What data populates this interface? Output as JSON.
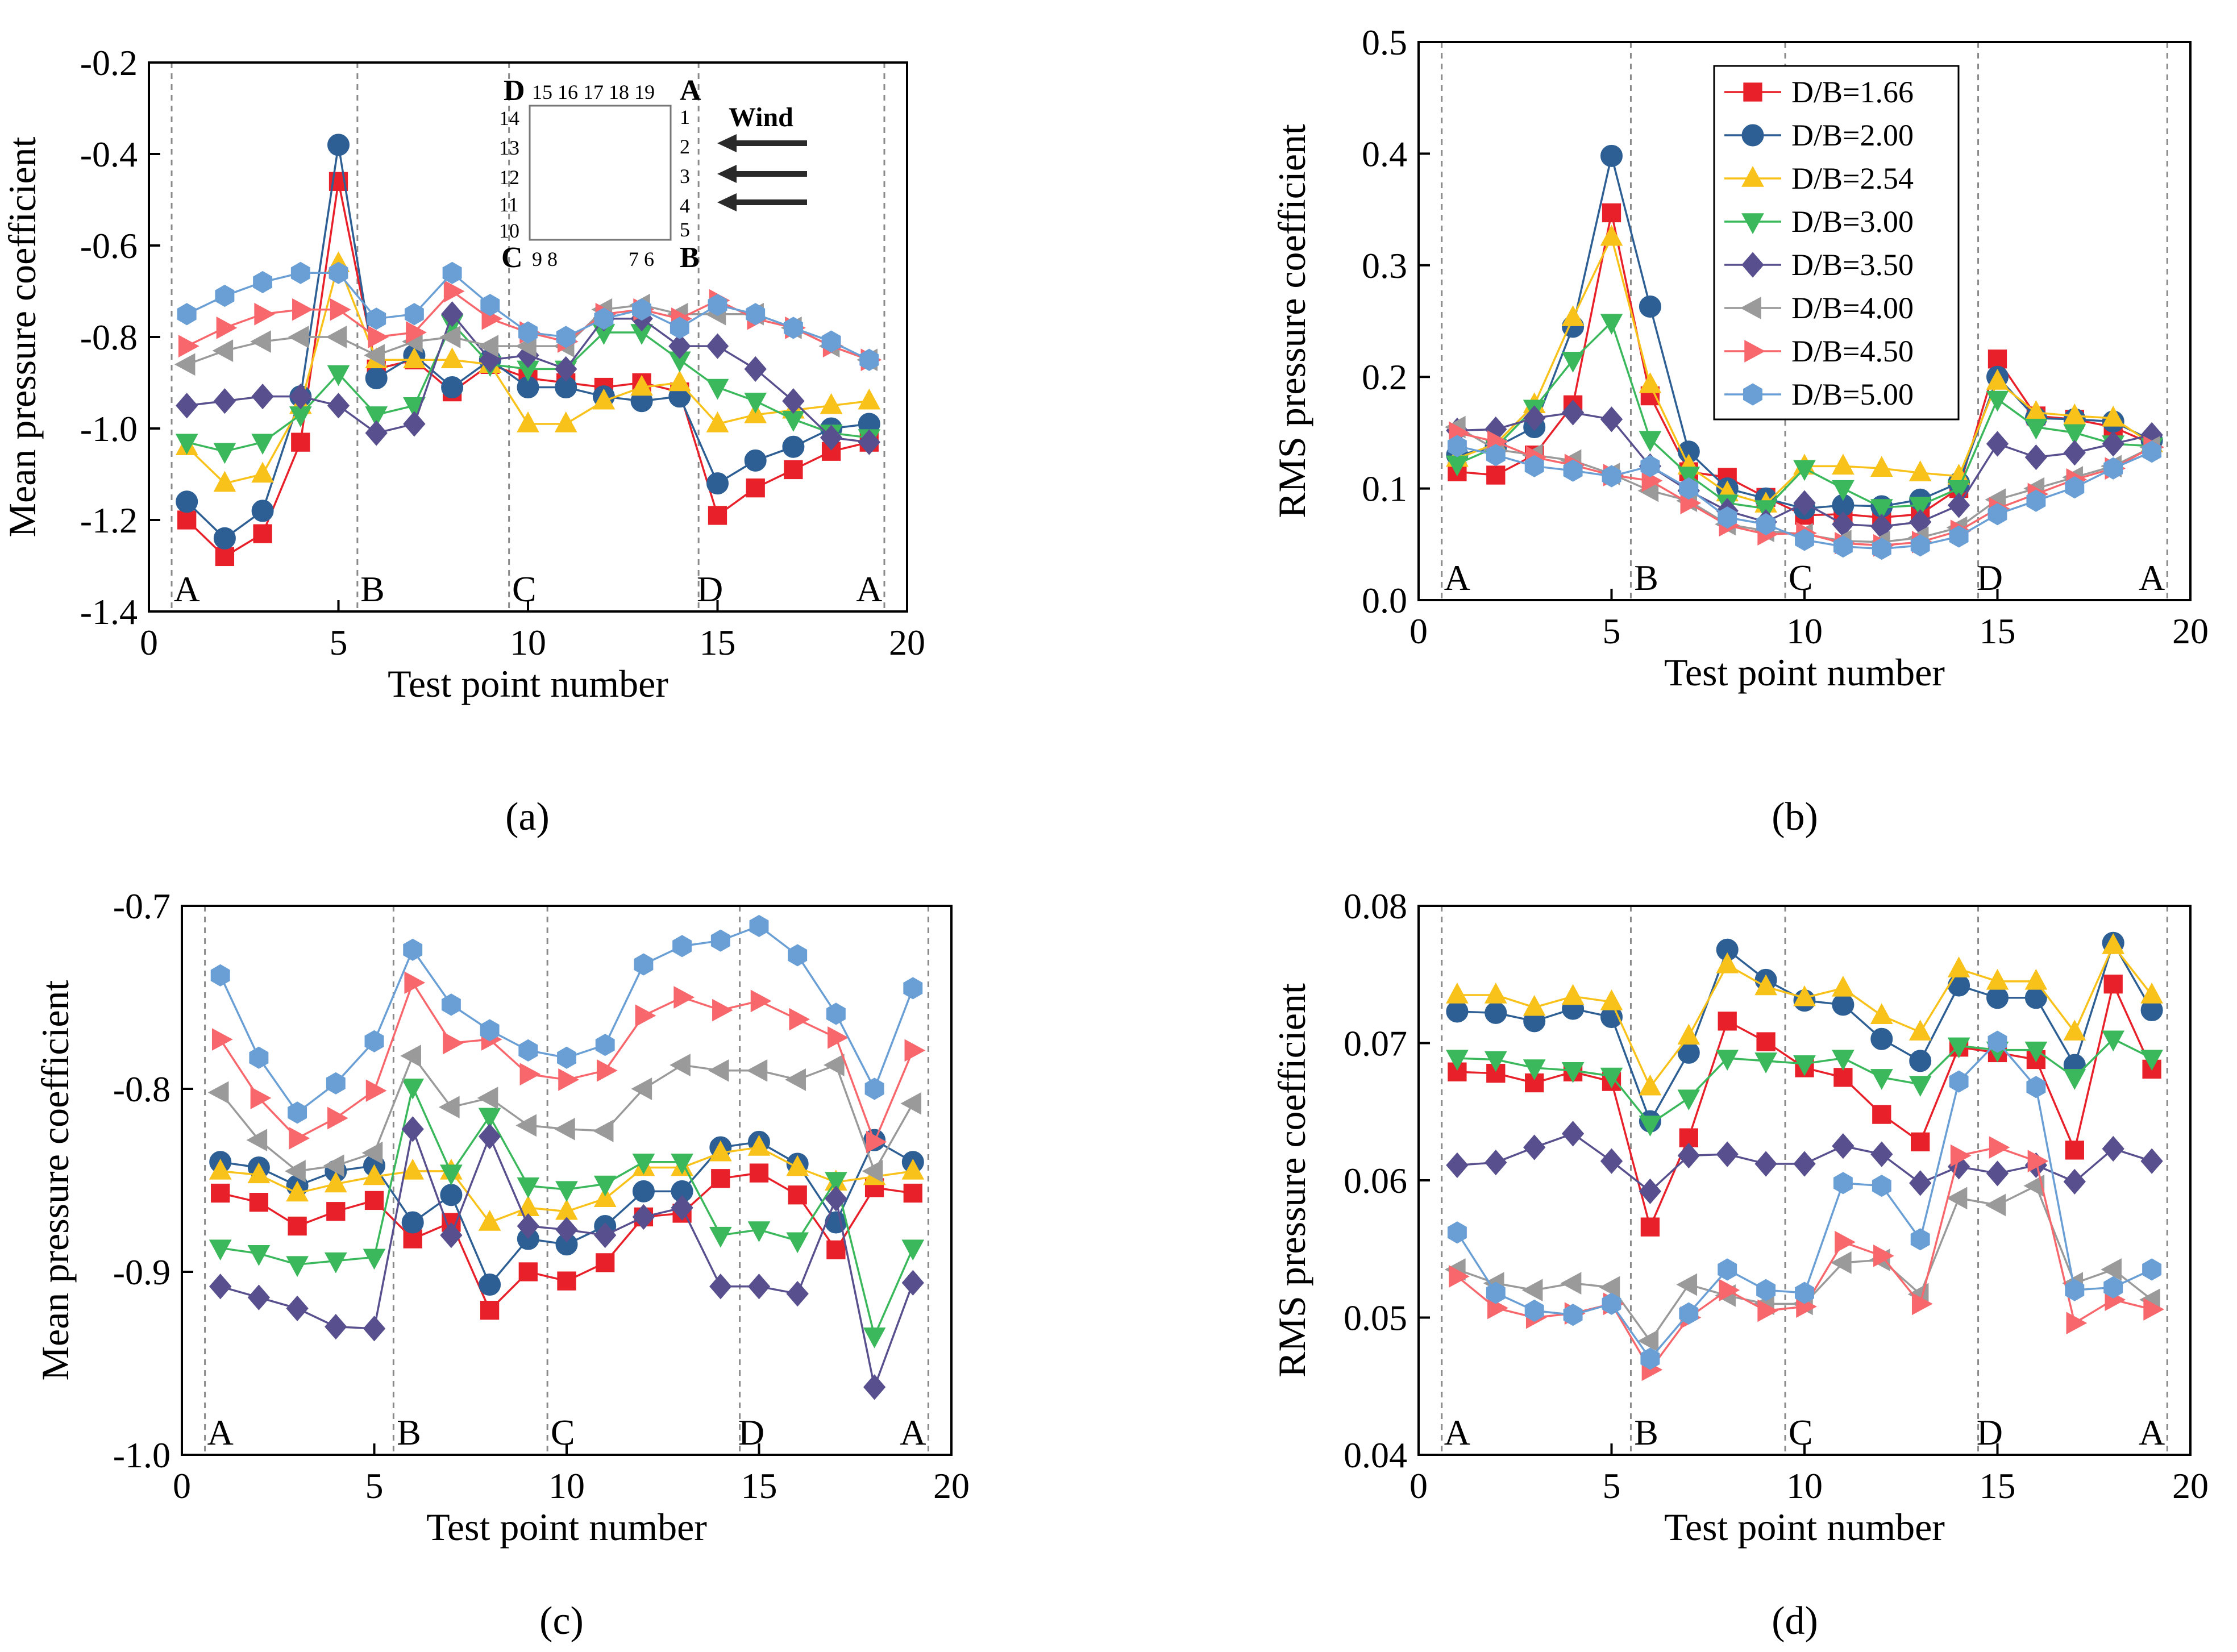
{
  "series_meta": [
    {
      "name": "D/B=1.66",
      "color": "#e8202a",
      "marker": "square"
    },
    {
      "name": "D/B=2.00",
      "color": "#2d5f94",
      "marker": "circle"
    },
    {
      "name": "D/B=2.54",
      "color": "#f9c21a",
      "marker": "triangle-up"
    },
    {
      "name": "D/B=3.00",
      "color": "#3ab85b",
      "marker": "triangle-down"
    },
    {
      "name": "D/B=3.50",
      "color": "#58508e",
      "marker": "diamond"
    },
    {
      "name": "D/B=4.00",
      "color": "#9a9a9a",
      "marker": "triangle-left"
    },
    {
      "name": "D/B=4.50",
      "color": "#f7676c",
      "marker": "triangle-right"
    },
    {
      "name": "D/B=5.00",
      "color": "#6a9fd6",
      "marker": "hexagon"
    }
  ],
  "region_lines_x": [
    0.6,
    5.5,
    9.5,
    14.5,
    19.4
  ],
  "region_labels": [
    {
      "text": "A",
      "x": 1.0
    },
    {
      "text": "B",
      "x": 5.9
    },
    {
      "text": "C",
      "x": 9.9
    },
    {
      "text": "D",
      "x": 14.8
    },
    {
      "text": "A",
      "x": 19.0
    }
  ],
  "inset": {
    "corner_labels": {
      "d": "D",
      "a": "A",
      "c": "C",
      "b": "B"
    },
    "top_numbers": "15 16 17 18 19",
    "right_numbers": [
      "1",
      "2",
      "3",
      "4",
      "5"
    ],
    "left_numbers": [
      "14",
      "13",
      "12",
      "11",
      "10"
    ],
    "bottom_left_numbers": "9  8",
    "bottom_right_numbers": "7  6",
    "wind_label": "Wind"
  },
  "chart_data": [
    {
      "id": "a",
      "panel_label": "(a)",
      "type": "line",
      "xlabel": "Test point number",
      "ylabel": "Mean pressure coefficient",
      "xlim": [
        0,
        20
      ],
      "ylim": [
        -1.4,
        -0.2
      ],
      "xticks": [
        0,
        5,
        10,
        15,
        20
      ],
      "xtick_labels": [
        "0",
        "5",
        "10",
        "15",
        "20"
      ],
      "yticks": [
        -1.4,
        -1.2,
        -1.0,
        -0.8,
        -0.6,
        -0.4,
        -0.2
      ],
      "ytick_labels": [
        "-1.4",
        "-1.2",
        "-1.0",
        "-0.8",
        "-0.6",
        "-0.4",
        "-0.2"
      ],
      "x": [
        1,
        2,
        3,
        4,
        5,
        6,
        7,
        8,
        9,
        10,
        11,
        12,
        13,
        14,
        15,
        16,
        17,
        18,
        19
      ],
      "series": [
        {
          "name": "D/B=1.66",
          "values": [
            -1.2,
            -1.28,
            -1.23,
            -1.03,
            -0.46,
            -0.87,
            -0.85,
            -0.92,
            -0.86,
            -0.89,
            -0.9,
            -0.91,
            -0.9,
            -0.92,
            -1.19,
            -1.13,
            -1.09,
            -1.05,
            -1.03
          ]
        },
        {
          "name": "D/B=2.00",
          "values": [
            -1.16,
            -1.24,
            -1.18,
            -0.93,
            -0.38,
            -0.89,
            -0.84,
            -0.91,
            -0.85,
            -0.91,
            -0.91,
            -0.93,
            -0.94,
            -0.93,
            -1.12,
            -1.07,
            -1.04,
            -1.0,
            -0.99
          ]
        },
        {
          "name": "D/B=2.54",
          "values": [
            -1.04,
            -1.12,
            -1.1,
            -0.95,
            -0.64,
            -0.85,
            -0.85,
            -0.85,
            -0.86,
            -0.99,
            -0.99,
            -0.94,
            -0.91,
            -0.9,
            -0.99,
            -0.97,
            -0.96,
            -0.95,
            -0.94
          ]
        },
        {
          "name": "D/B=3.00",
          "values": [
            -1.03,
            -1.05,
            -1.03,
            -0.97,
            -0.88,
            -0.97,
            -0.95,
            -0.77,
            -0.86,
            -0.87,
            -0.87,
            -0.79,
            -0.79,
            -0.85,
            -0.91,
            -0.94,
            -0.98,
            -1.01,
            -1.02
          ]
        },
        {
          "name": "D/B=3.50",
          "values": [
            -0.95,
            -0.94,
            -0.93,
            -0.93,
            -0.95,
            -1.01,
            -0.99,
            -0.75,
            -0.85,
            -0.84,
            -0.87,
            -0.76,
            -0.76,
            -0.82,
            -0.82,
            -0.87,
            -0.94,
            -1.02,
            -1.03
          ]
        },
        {
          "name": "D/B=4.00",
          "values": [
            -0.86,
            -0.83,
            -0.81,
            -0.8,
            -0.8,
            -0.84,
            -0.81,
            -0.8,
            -0.82,
            -0.82,
            -0.82,
            -0.74,
            -0.73,
            -0.75,
            -0.75,
            -0.75,
            -0.78,
            -0.82,
            -0.85
          ]
        },
        {
          "name": "D/B=4.50",
          "values": [
            -0.82,
            -0.78,
            -0.75,
            -0.74,
            -0.74,
            -0.8,
            -0.79,
            -0.7,
            -0.76,
            -0.79,
            -0.81,
            -0.75,
            -0.74,
            -0.76,
            -0.72,
            -0.76,
            -0.78,
            -0.82,
            -0.85
          ]
        },
        {
          "name": "D/B=5.00",
          "values": [
            -0.75,
            -0.71,
            -0.68,
            -0.66,
            -0.66,
            -0.76,
            -0.75,
            -0.66,
            -0.73,
            -0.79,
            -0.8,
            -0.76,
            -0.74,
            -0.78,
            -0.73,
            -0.75,
            -0.78,
            -0.81,
            -0.85
          ]
        }
      ]
    },
    {
      "id": "b",
      "panel_label": "(b)",
      "type": "line",
      "xlabel": "Test point number",
      "ylabel": "RMS pressure coefficient",
      "xlim": [
        0,
        20
      ],
      "ylim": [
        0.0,
        0.5
      ],
      "xticks": [
        0,
        5,
        10,
        15,
        20
      ],
      "xtick_labels": [
        "0",
        "5",
        "10",
        "15",
        "20"
      ],
      "yticks": [
        0.0,
        0.1,
        0.2,
        0.3,
        0.4,
        0.5
      ],
      "ytick_labels": [
        "0.0",
        "0.1",
        "0.2",
        "0.3",
        "0.4",
        "0.5"
      ],
      "legend": "top-inside",
      "x": [
        1,
        2,
        3,
        4,
        5,
        6,
        7,
        8,
        9,
        10,
        11,
        12,
        13,
        14,
        15,
        16,
        17,
        18,
        19
      ],
      "series": [
        {
          "name": "D/B=1.66",
          "values": [
            0.115,
            0.112,
            0.13,
            0.175,
            0.347,
            0.183,
            0.115,
            0.11,
            0.092,
            0.076,
            0.077,
            0.074,
            0.077,
            0.1,
            0.216,
            0.165,
            0.162,
            0.155,
            0.14
          ]
        },
        {
          "name": "D/B=2.00",
          "values": [
            0.13,
            0.137,
            0.155,
            0.245,
            0.398,
            0.263,
            0.133,
            0.1,
            0.091,
            0.082,
            0.085,
            0.084,
            0.09,
            0.105,
            0.2,
            0.163,
            0.162,
            0.16,
            0.143
          ]
        },
        {
          "name": "D/B=2.54",
          "values": [
            0.127,
            0.14,
            0.175,
            0.253,
            0.325,
            0.193,
            0.12,
            0.096,
            0.086,
            0.12,
            0.12,
            0.118,
            0.114,
            0.111,
            0.196,
            0.168,
            0.165,
            0.163,
            0.14
          ]
        },
        {
          "name": "D/B=3.00",
          "values": [
            0.122,
            0.137,
            0.172,
            0.215,
            0.249,
            0.144,
            0.112,
            0.087,
            0.082,
            0.118,
            0.1,
            0.083,
            0.085,
            0.1,
            0.18,
            0.155,
            0.15,
            0.14,
            0.138
          ]
        },
        {
          "name": "D/B=3.50",
          "values": [
            0.152,
            0.153,
            0.163,
            0.168,
            0.162,
            0.12,
            0.098,
            0.08,
            0.07,
            0.087,
            0.068,
            0.066,
            0.07,
            0.085,
            0.14,
            0.128,
            0.132,
            0.14,
            0.148
          ]
        },
        {
          "name": "D/B=4.00",
          "values": [
            0.155,
            0.135,
            0.13,
            0.125,
            0.113,
            0.098,
            0.089,
            0.068,
            0.062,
            0.059,
            0.053,
            0.052,
            0.056,
            0.065,
            0.09,
            0.1,
            0.11,
            0.12,
            0.137
          ]
        },
        {
          "name": "D/B=4.50",
          "values": [
            0.15,
            0.142,
            0.128,
            0.121,
            0.112,
            0.107,
            0.087,
            0.067,
            0.059,
            0.06,
            0.051,
            0.049,
            0.052,
            0.062,
            0.082,
            0.095,
            0.108,
            0.118,
            0.137
          ]
        },
        {
          "name": "D/B=5.00",
          "values": [
            0.138,
            0.13,
            0.12,
            0.116,
            0.111,
            0.12,
            0.1,
            0.074,
            0.068,
            0.054,
            0.048,
            0.046,
            0.049,
            0.057,
            0.077,
            0.089,
            0.101,
            0.118,
            0.133
          ]
        }
      ]
    },
    {
      "id": "c",
      "panel_label": "(c)",
      "type": "line",
      "xlabel": "Test point number",
      "ylabel": "Mean pressure coefficient",
      "xlim": [
        0,
        20
      ],
      "ylim": [
        -1.0,
        -0.7
      ],
      "xticks": [
        0,
        5,
        10,
        15,
        20
      ],
      "xtick_labels": [
        "0",
        "5",
        "10",
        "15",
        "20"
      ],
      "yticks": [
        -1.0,
        -0.9,
        -0.8,
        -0.7
      ],
      "ytick_labels": [
        "-1.0",
        "-0.9",
        "-0.8",
        "-0.7"
      ],
      "x": [
        1,
        2,
        3,
        4,
        5,
        6,
        7,
        8,
        9,
        10,
        11,
        12,
        13,
        14,
        15,
        16,
        17,
        18,
        19
      ],
      "series": [
        {
          "name": "D/B=1.66",
          "values": [
            -0.857,
            -0.862,
            -0.875,
            -0.867,
            -0.861,
            -0.882,
            -0.873,
            -0.921,
            -0.9,
            -0.905,
            -0.895,
            -0.87,
            -0.868,
            -0.849,
            -0.846,
            -0.858,
            -0.888,
            -0.854,
            -0.857
          ]
        },
        {
          "name": "D/B=2.00",
          "values": [
            -0.84,
            -0.843,
            -0.853,
            -0.845,
            -0.842,
            -0.873,
            -0.858,
            -0.907,
            -0.882,
            -0.885,
            -0.875,
            -0.856,
            -0.856,
            -0.832,
            -0.829,
            -0.841,
            -0.873,
            -0.828,
            -0.84
          ]
        },
        {
          "name": "D/B=2.54",
          "values": [
            -0.845,
            -0.847,
            -0.857,
            -0.852,
            -0.848,
            -0.845,
            -0.845,
            -0.873,
            -0.865,
            -0.867,
            -0.86,
            -0.843,
            -0.843,
            -0.835,
            -0.832,
            -0.843,
            -0.851,
            -0.848,
            -0.845
          ]
        },
        {
          "name": "D/B=3.00",
          "values": [
            -0.887,
            -0.89,
            -0.896,
            -0.894,
            -0.892,
            -0.799,
            -0.846,
            -0.815,
            -0.853,
            -0.855,
            -0.852,
            -0.84,
            -0.84,
            -0.88,
            -0.877,
            -0.883,
            -0.85,
            -0.935,
            -0.887
          ]
        },
        {
          "name": "D/B=3.50",
          "values": [
            -0.908,
            -0.914,
            -0.92,
            -0.93,
            -0.931,
            -0.822,
            -0.88,
            -0.826,
            -0.875,
            -0.877,
            -0.88,
            -0.87,
            -0.865,
            -0.908,
            -0.908,
            -0.912,
            -0.86,
            -0.963,
            -0.906
          ]
        },
        {
          "name": "D/B=4.00",
          "values": [
            -0.802,
            -0.828,
            -0.845,
            -0.842,
            -0.835,
            -0.782,
            -0.81,
            -0.805,
            -0.82,
            -0.822,
            -0.823,
            -0.8,
            -0.787,
            -0.79,
            -0.79,
            -0.795,
            -0.787,
            -0.845,
            -0.808
          ]
        },
        {
          "name": "D/B=4.50",
          "values": [
            -0.773,
            -0.805,
            -0.827,
            -0.816,
            -0.801,
            -0.742,
            -0.775,
            -0.773,
            -0.792,
            -0.795,
            -0.79,
            -0.76,
            -0.75,
            -0.757,
            -0.752,
            -0.762,
            -0.772,
            -0.829,
            -0.779
          ]
        },
        {
          "name": "D/B=5.00",
          "values": [
            -0.738,
            -0.783,
            -0.813,
            -0.797,
            -0.774,
            -0.724,
            -0.754,
            -0.768,
            -0.779,
            -0.783,
            -0.776,
            -0.732,
            -0.722,
            -0.719,
            -0.711,
            -0.727,
            -0.759,
            -0.8,
            -0.745
          ]
        }
      ]
    },
    {
      "id": "d",
      "panel_label": "(d)",
      "type": "line",
      "xlabel": "Test point number",
      "ylabel": "RMS pressure coefficient",
      "xlim": [
        0,
        20
      ],
      "ylim": [
        0.04,
        0.08
      ],
      "xticks": [
        0,
        5,
        10,
        15,
        20
      ],
      "xtick_labels": [
        "0",
        "5",
        "10",
        "15",
        "20"
      ],
      "yticks": [
        0.04,
        0.05,
        0.06,
        0.07,
        0.08
      ],
      "ytick_labels": [
        "0.04",
        "0.05",
        "0.06",
        "0.07",
        "0.08"
      ],
      "x": [
        1,
        2,
        3,
        4,
        5,
        6,
        7,
        8,
        9,
        10,
        11,
        12,
        13,
        14,
        15,
        16,
        17,
        18,
        19
      ],
      "series": [
        {
          "name": "D/B=1.66",
          "values": [
            0.0679,
            0.0678,
            0.0671,
            0.0679,
            0.0672,
            0.0566,
            0.0631,
            0.0716,
            0.0701,
            0.0682,
            0.0675,
            0.0648,
            0.0628,
            0.0697,
            0.0693,
            0.0688,
            0.0622,
            0.0743,
            0.0681
          ]
        },
        {
          "name": "D/B=2.00",
          "values": [
            0.0723,
            0.0722,
            0.0716,
            0.0725,
            0.0719,
            0.0643,
            0.0693,
            0.0768,
            0.0746,
            0.0731,
            0.0728,
            0.0703,
            0.0687,
            0.0742,
            0.0733,
            0.0733,
            0.0684,
            0.0773,
            0.0724
          ]
        },
        {
          "name": "D/B=2.54",
          "values": [
            0.0735,
            0.0735,
            0.0726,
            0.0734,
            0.073,
            0.0668,
            0.0705,
            0.0757,
            0.0741,
            0.0733,
            0.074,
            0.072,
            0.0708,
            0.0754,
            0.0745,
            0.0745,
            0.0708,
            0.0771,
            0.0735
          ]
        },
        {
          "name": "D/B=3.00",
          "values": [
            0.0689,
            0.0688,
            0.0682,
            0.068,
            0.0676,
            0.0641,
            0.066,
            0.0689,
            0.0687,
            0.0685,
            0.0689,
            0.0675,
            0.067,
            0.0698,
            0.0695,
            0.0695,
            0.0675,
            0.0703,
            0.0689
          ]
        },
        {
          "name": "D/B=3.50",
          "values": [
            0.0611,
            0.0613,
            0.0624,
            0.0634,
            0.0614,
            0.0592,
            0.0618,
            0.0619,
            0.0612,
            0.0612,
            0.0625,
            0.0619,
            0.0598,
            0.061,
            0.0605,
            0.0611,
            0.0599,
            0.0623,
            0.0614
          ]
        },
        {
          "name": "D/B=4.00",
          "values": [
            0.0535,
            0.0525,
            0.052,
            0.0525,
            0.0522,
            0.0483,
            0.0524,
            0.0516,
            0.051,
            0.051,
            0.054,
            0.0542,
            0.0517,
            0.0587,
            0.0582,
            0.0596,
            0.0525,
            0.0535,
            0.0513
          ]
        },
        {
          "name": "D/B=4.50",
          "values": [
            0.053,
            0.0507,
            0.05,
            0.0503,
            0.051,
            0.0462,
            0.05,
            0.052,
            0.0505,
            0.0508,
            0.0555,
            0.0545,
            0.051,
            0.0618,
            0.0624,
            0.0614,
            0.0496,
            0.0513,
            0.0506
          ]
        },
        {
          "name": "D/B=5.00",
          "values": [
            0.0562,
            0.0518,
            0.0505,
            0.0502,
            0.051,
            0.047,
            0.0503,
            0.0535,
            0.052,
            0.0518,
            0.0598,
            0.0596,
            0.0557,
            0.0672,
            0.0701,
            0.0668,
            0.052,
            0.0522,
            0.0535
          ]
        }
      ]
    }
  ]
}
